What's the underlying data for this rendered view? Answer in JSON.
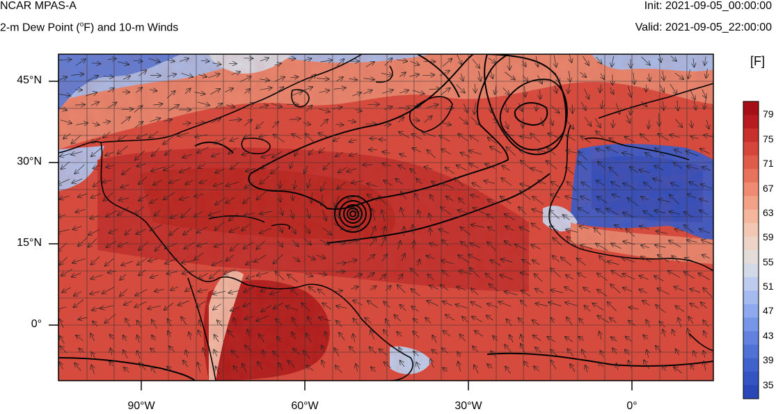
{
  "header": {
    "title": "NCAR MPAS-A",
    "subtitle_prefix": "2-m Dew Point (",
    "subtitle_sup": "o",
    "subtitle_suffix": "F) and 10-m Winds",
    "init": "Init: 2021-09-05_00:00:00",
    "valid": "Valid: 2021-09-05_22:00:00"
  },
  "axes": {
    "y_labels": [
      "45°N",
      "30°N",
      "15°N",
      "0°"
    ],
    "x_labels": [
      "90°W",
      "60°W",
      "30°W",
      "0°"
    ]
  },
  "colorbar": {
    "units": "[F]",
    "labels": [
      "79",
      "75",
      "71",
      "67",
      "63",
      "59",
      "55",
      "51",
      "47",
      "43",
      "39",
      "35"
    ],
    "colors": [
      "#a50f15",
      "#b71a1f",
      "#c8302b",
      "#d6453a",
      "#e05c4a",
      "#e8735c",
      "#ee8b72",
      "#f2a287",
      "#f4b79e",
      "#f2c7b4",
      "#eed3c8",
      "#e4dcd9",
      "#d2d9e7",
      "#bccbee",
      "#a5bbf0",
      "#8ea9ee",
      "#7896e8",
      "#6382e0",
      "#5071d6",
      "#4062cc",
      "#3454c2",
      "#2a47b8"
    ]
  },
  "map_data": {
    "lon_range": [
      -105,
      15
    ],
    "lat_range": [
      -10,
      50
    ],
    "storm_center": {
      "lon": -52,
      "lat": 20
    }
  }
}
